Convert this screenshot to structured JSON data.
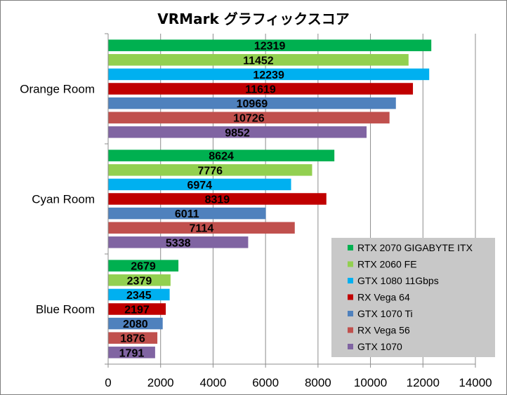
{
  "chart_data": {
    "type": "bar",
    "orientation": "horizontal",
    "title": "VRMark グラフィックスコア",
    "xlabel": "",
    "ylabel": "",
    "xlim": [
      0,
      14000
    ],
    "x_ticks": [
      0,
      2000,
      4000,
      6000,
      8000,
      10000,
      12000,
      14000
    ],
    "x_tick_labels": [
      "0",
      "2000",
      "4000",
      "6000",
      "8000",
      "10000",
      "12000",
      "14000"
    ],
    "grid": true,
    "legend_position": "bottom-right",
    "categories": [
      "Orange Room",
      "Cyan Room",
      "Blue Room"
    ],
    "series": [
      {
        "name": "RTX 2070 GIGABYTE ITX",
        "color": "#00b050",
        "values": [
          12319,
          8624,
          2679
        ]
      },
      {
        "name": "RTX 2060 FE",
        "color": "#92d050",
        "values": [
          11452,
          7776,
          2379
        ]
      },
      {
        "name": "GTX 1080 11Gbps",
        "color": "#00b0f0",
        "values": [
          12239,
          6974,
          2345
        ]
      },
      {
        "name": "RX Vega 64",
        "color": "#c00000",
        "values": [
          11619,
          8319,
          2197
        ]
      },
      {
        "name": "GTX 1070 Ti",
        "color": "#4f81bd",
        "values": [
          10969,
          6011,
          2080
        ]
      },
      {
        "name": "RX Vega 56",
        "color": "#c0504d",
        "values": [
          10726,
          7114,
          1876
        ]
      },
      {
        "name": "GTX 1070",
        "color": "#8064a2",
        "values": [
          9852,
          5338,
          1791
        ]
      }
    ]
  }
}
